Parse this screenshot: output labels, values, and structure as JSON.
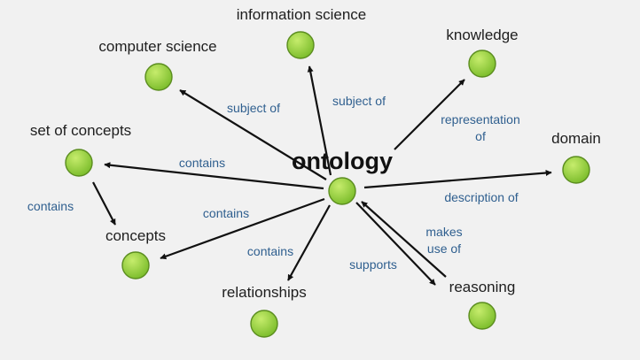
{
  "colors": {
    "background": "#f1f1f1",
    "node_fill_light": "#c6ec6c",
    "node_fill_dark": "#7cbd2c",
    "node_stroke": "#5b8d1f",
    "edge": "#111111",
    "edge_label": "#2f5f8f"
  },
  "diagram": {
    "center": {
      "id": "ontology",
      "label": "ontology"
    },
    "nodes": [
      {
        "id": "ontology",
        "label": "ontology"
      },
      {
        "id": "information-science",
        "label": "information science"
      },
      {
        "id": "computer-science",
        "label": "computer science"
      },
      {
        "id": "knowledge",
        "label": "knowledge"
      },
      {
        "id": "set-of-concepts",
        "label": "set of concepts"
      },
      {
        "id": "domain",
        "label": "domain"
      },
      {
        "id": "concepts",
        "label": "concepts"
      },
      {
        "id": "relationships",
        "label": "relationships"
      },
      {
        "id": "reasoning",
        "label": "reasoning"
      }
    ],
    "edges": [
      {
        "id": "e1",
        "from": "ontology",
        "to": "computer-science",
        "lines": [
          "subject of"
        ]
      },
      {
        "id": "e2",
        "from": "ontology",
        "to": "information-science",
        "lines": [
          "subject of"
        ]
      },
      {
        "id": "e3",
        "from": "ontology",
        "to": "knowledge",
        "lines": [
          "representation",
          "of"
        ]
      },
      {
        "id": "e4",
        "from": "ontology",
        "to": "set-of-concepts",
        "lines": [
          "contains"
        ]
      },
      {
        "id": "e5",
        "from": "ontology",
        "to": "domain",
        "lines": [
          "description of"
        ]
      },
      {
        "id": "e6",
        "from": "ontology",
        "to": "concepts",
        "lines": [
          "contains"
        ]
      },
      {
        "id": "e7",
        "from": "ontology",
        "to": "relationships",
        "lines": [
          "contains"
        ]
      },
      {
        "id": "e8",
        "from": "ontology",
        "to": "reasoning",
        "lines": [
          "supports"
        ]
      },
      {
        "id": "e9",
        "from": "reasoning",
        "to": "ontology",
        "lines": [
          "makes",
          "use of"
        ]
      },
      {
        "id": "e10",
        "from": "set-of-concepts",
        "to": "concepts",
        "lines": [
          "contains"
        ]
      }
    ]
  }
}
